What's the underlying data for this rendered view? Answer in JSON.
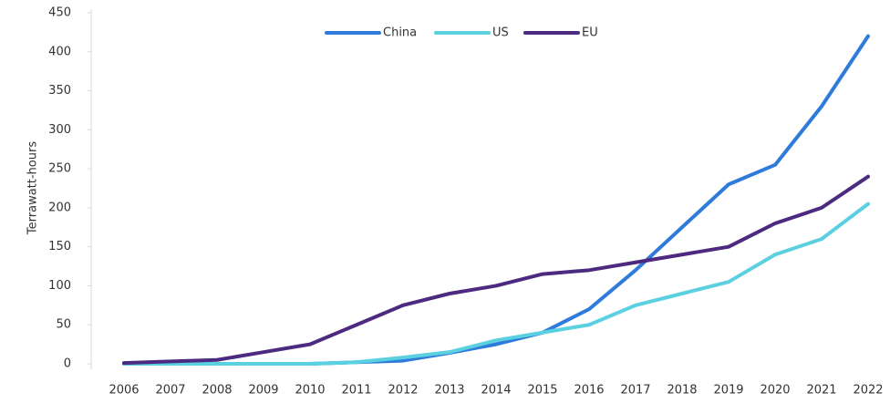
{
  "chart_data": {
    "type": "line",
    "y_label": "Terrawatt-hours",
    "categories": [
      "2006",
      "2007",
      "2008",
      "2009",
      "2010",
      "2011",
      "2012",
      "2013",
      "2014",
      "2015",
      "2016",
      "2017",
      "2018",
      "2019",
      "2020",
      "2021",
      "2022"
    ],
    "series": [
      {
        "name": "China",
        "color": "#2e7bdc",
        "values": [
          0,
          0,
          0,
          0,
          0,
          2,
          4,
          14,
          25,
          40,
          70,
          120,
          175,
          230,
          255,
          330,
          420
        ]
      },
      {
        "name": "US",
        "color": "#5bd0e0",
        "values": [
          0,
          0,
          0,
          0,
          0,
          2,
          8,
          15,
          30,
          40,
          50,
          75,
          90,
          105,
          140,
          160,
          205
        ]
      },
      {
        "name": "EU",
        "color": "#4b2a7f",
        "values": [
          1,
          3,
          5,
          15,
          25,
          50,
          75,
          90,
          100,
          115,
          120,
          130,
          140,
          150,
          180,
          200,
          240
        ]
      }
    ],
    "ylim": [
      0,
      450
    ],
    "yticks": [
      0,
      50,
      100,
      150,
      200,
      250,
      300,
      350,
      400,
      450
    ],
    "grid": false,
    "legend": "top"
  }
}
